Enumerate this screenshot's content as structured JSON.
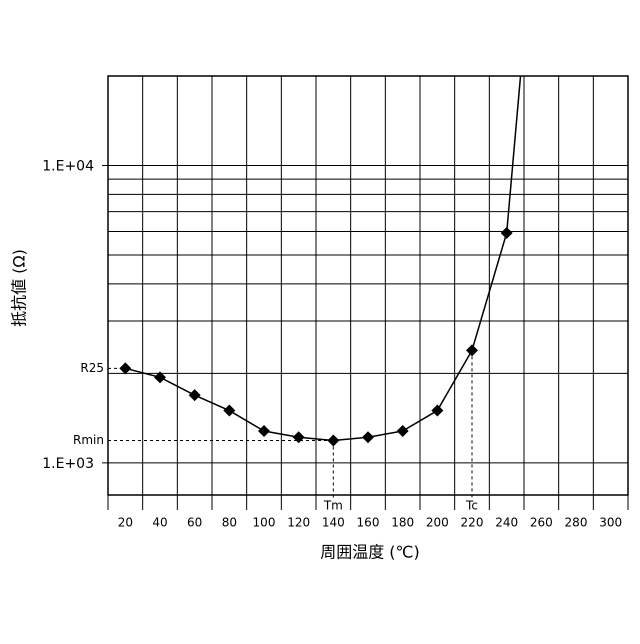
{
  "chart_data": {
    "type": "line",
    "y_scale": "log",
    "x_label": "周囲温度 (℃)",
    "y_label": "抵抗値 (Ω)",
    "x": [
      20,
      40,
      60,
      80,
      100,
      120,
      140,
      160,
      180,
      200,
      220,
      240,
      248
    ],
    "series": [
      {
        "color": "#000000",
        "values": [
          2080,
          1940,
          1690,
          1500,
          1280,
          1220,
          1190,
          1220,
          1280,
          1500,
          2390,
          5930,
          20000
        ],
        "markers": [
          true,
          true,
          true,
          true,
          true,
          true,
          true,
          true,
          true,
          true,
          true,
          true,
          false
        ]
      }
    ],
    "xlim": [
      10,
      310
    ],
    "xticks": [
      20,
      40,
      60,
      80,
      100,
      120,
      140,
      160,
      180,
      200,
      220,
      240,
      260,
      280,
      300
    ],
    "xgrid": [
      30,
      50,
      70,
      90,
      110,
      130,
      150,
      170,
      190,
      210,
      230,
      250,
      270,
      290
    ],
    "ylim": [
      780,
      20000
    ],
    "yticks": [
      {
        "value": 1000,
        "label": "1.E+03"
      },
      {
        "value": 10000,
        "label": "1.E+04"
      }
    ],
    "ygrid": [
      2000,
      3000,
      4000,
      5000,
      6000,
      7000,
      8000,
      9000
    ],
    "hlines": [
      {
        "label": "R25",
        "value": 2080
      },
      {
        "label": "Rmin",
        "value": 1190
      }
    ],
    "vlines": [
      {
        "label": "Tm",
        "value": 140
      },
      {
        "label": "Tc",
        "value": 220
      }
    ]
  }
}
